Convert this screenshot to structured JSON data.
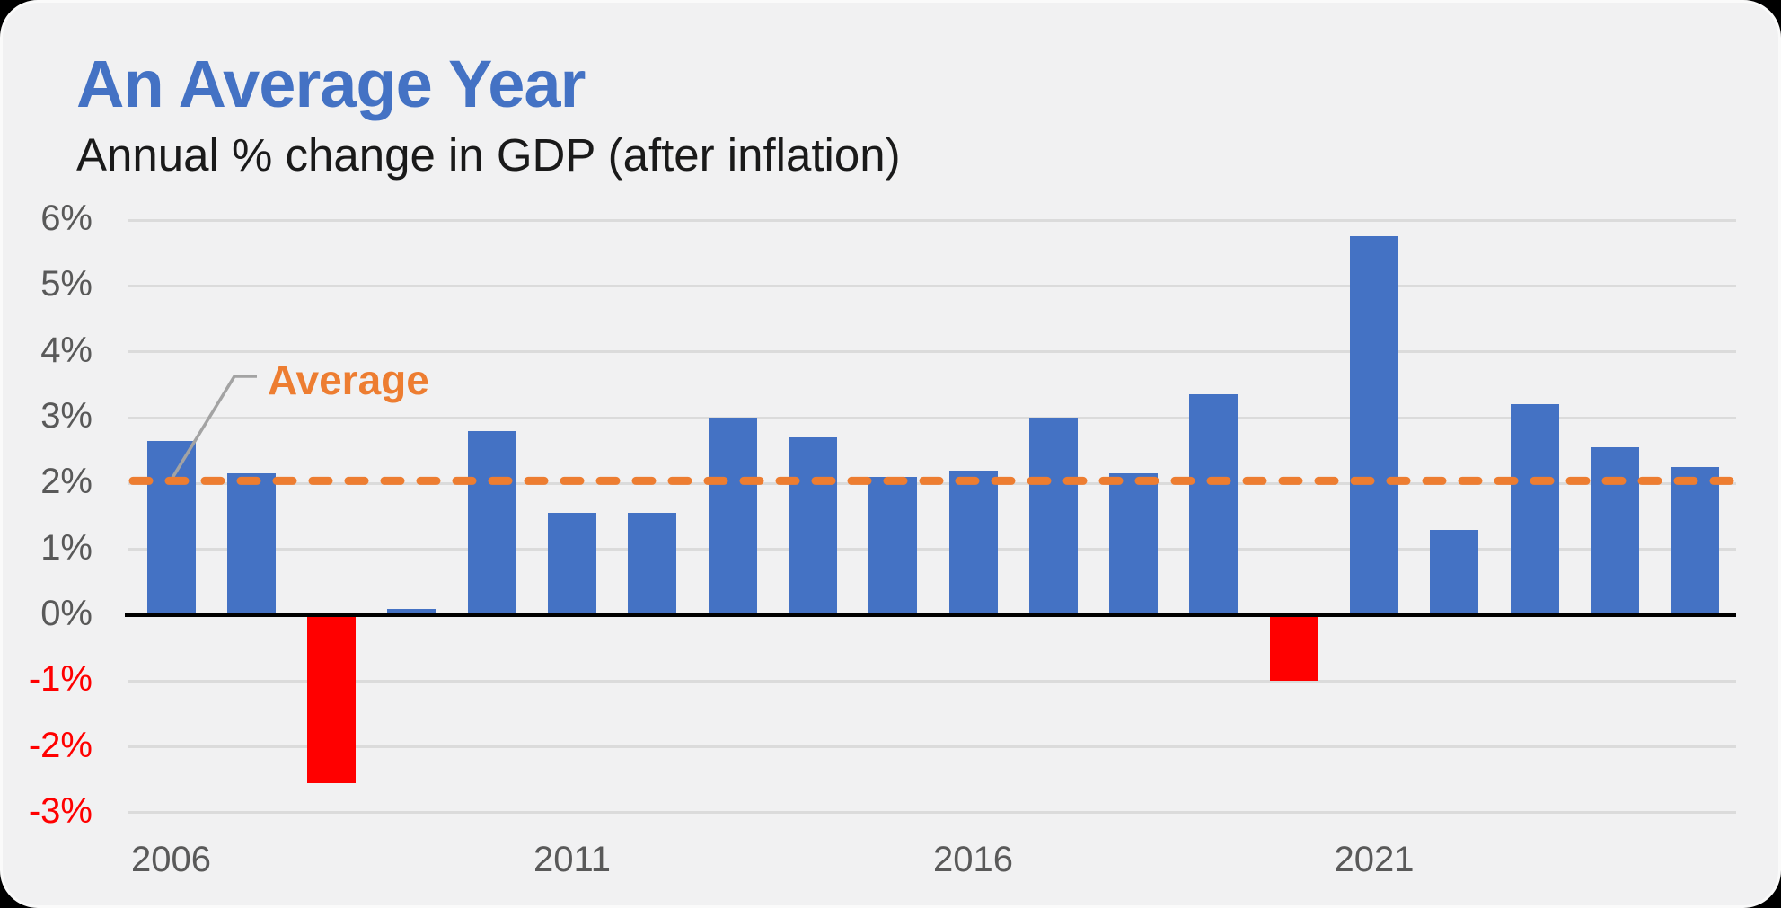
{
  "header": {
    "title": "An Average Year",
    "subtitle": "Annual % change in GDP (after inflation)"
  },
  "chart_data": {
    "type": "bar",
    "title": "An Average Year",
    "subtitle": "Annual % change in GDP (after inflation)",
    "categories": [
      2006,
      2007,
      2008,
      2009,
      2010,
      2011,
      2012,
      2013,
      2014,
      2015,
      2016,
      2017,
      2018,
      2019,
      2020,
      2021,
      2022,
      2023,
      2024,
      2025
    ],
    "values": [
      2.65,
      2.15,
      -2.55,
      0.1,
      2.8,
      1.55,
      1.55,
      3.0,
      2.7,
      2.1,
      2.2,
      3.0,
      2.15,
      3.35,
      -1.0,
      5.75,
      1.3,
      3.2,
      2.55,
      2.25
    ],
    "average": {
      "label": "Average",
      "value": 2.04
    },
    "y_ticks": [
      {
        "label": "6%",
        "value": 6
      },
      {
        "label": "5%",
        "value": 5
      },
      {
        "label": "4%",
        "value": 4
      },
      {
        "label": "3%",
        "value": 3
      },
      {
        "label": "2%",
        "value": 2
      },
      {
        "label": "1%",
        "value": 1
      },
      {
        "label": "0%",
        "value": 0
      },
      {
        "label": "-1%",
        "value": -1
      },
      {
        "label": "-2%",
        "value": -2
      },
      {
        "label": "-3%",
        "value": -3
      }
    ],
    "x_ticks": [
      {
        "label": "2006",
        "year": 2006
      },
      {
        "label": "2011",
        "year": 2011
      },
      {
        "label": "2016",
        "year": 2016
      },
      {
        "label": "2021",
        "year": 2021
      }
    ],
    "ylim": [
      -3,
      6
    ],
    "grid": "horizontal",
    "legend_position": "none",
    "colors": {
      "positive_bar": "#4472C4",
      "negative_bar": "#FF0000",
      "average_line": "#ED7D31",
      "average_label": "#ED7D31",
      "leader_line": "#A3A3A3",
      "title": "#4472C4",
      "subtitle": "#1A1A1A",
      "axis_label": "#595959",
      "negative_axis_label": "#FF0000",
      "gridline": "#DBDBDB",
      "zero_axis": "#000000",
      "background": "#F1F1F2",
      "page_background": "#000000"
    }
  }
}
